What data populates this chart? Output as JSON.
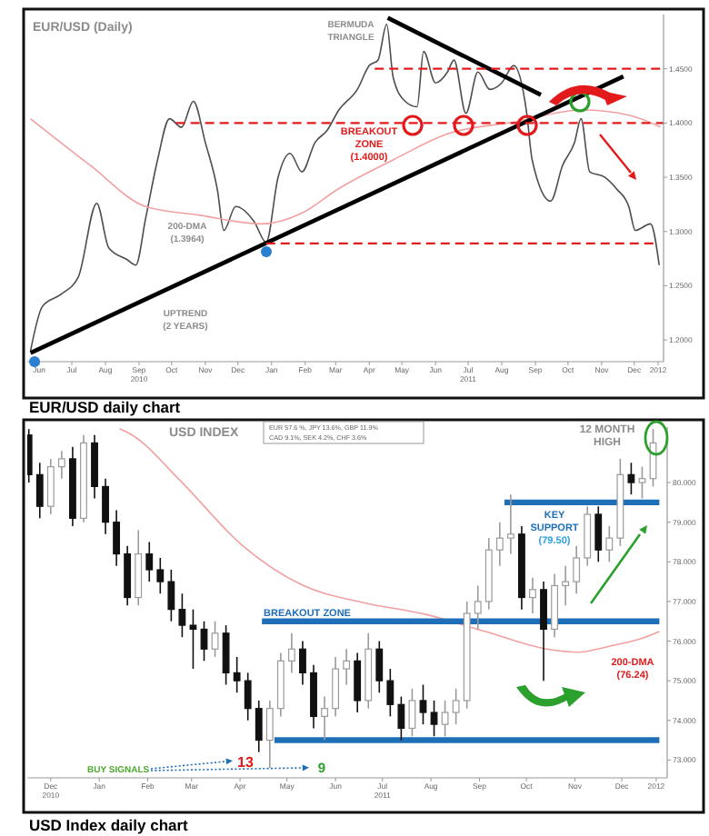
{
  "chart_data": [
    {
      "type": "line",
      "title": "EUR/USD (Daily)",
      "xlim": [
        "2010-06-04",
        "2012-01-11"
      ],
      "ylim": [
        1.18,
        1.5
      ],
      "xticks": [
        {
          "value": "2010-06-15",
          "label": "Jun"
        },
        {
          "value": "2010-07-15",
          "label": "Jul"
        },
        {
          "value": "2010-08-15",
          "label": "Aug"
        },
        {
          "value": "2010-09-15",
          "label": "Sep\n2010"
        },
        {
          "value": "2010-10-15",
          "label": "Oct"
        },
        {
          "value": "2010-11-15",
          "label": "Nov"
        },
        {
          "value": "2010-12-15",
          "label": "Dec"
        },
        {
          "value": "2011-01-15",
          "label": "Jan"
        },
        {
          "value": "2011-02-15",
          "label": "Feb"
        },
        {
          "value": "2011-03-15",
          "label": "Mar"
        },
        {
          "value": "2011-04-15",
          "label": "Apr"
        },
        {
          "value": "2011-05-15",
          "label": "May"
        },
        {
          "value": "2011-06-15",
          "label": "Jun"
        },
        {
          "value": "2011-07-15",
          "label": "Jul\n2011"
        },
        {
          "value": "2011-08-15",
          "label": "Aug"
        },
        {
          "value": "2011-09-15",
          "label": "Sep"
        },
        {
          "value": "2011-10-15",
          "label": "Oct"
        },
        {
          "value": "2011-11-15",
          "label": "Nov"
        },
        {
          "value": "2011-12-15",
          "label": "Dec"
        },
        {
          "value": "2012-01-06",
          "label": "2012"
        }
      ],
      "yticks": [
        {
          "value": 1.2,
          "label": "1.2000"
        },
        {
          "value": 1.25,
          "label": "1.2500"
        },
        {
          "value": 1.3,
          "label": "1.3000"
        },
        {
          "value": 1.35,
          "label": "1.3500"
        },
        {
          "value": 1.4,
          "label": "1.4000"
        },
        {
          "value": 1.45,
          "label": "1.4500"
        }
      ],
      "series": [
        {
          "color": "#4d4d4d",
          "x": [
            "2010-06-07",
            "2010-06-18",
            "2010-07-05",
            "2010-07-21",
            "2010-08-07",
            "2010-08-18",
            "2010-09-04",
            "2010-09-12",
            "2010-09-21",
            "2010-10-02",
            "2010-10-13",
            "2010-10-24",
            "2010-11-04",
            "2010-11-15",
            "2010-11-26",
            "2010-12-02",
            "2010-12-13",
            "2010-12-30",
            "2011-01-10",
            "2011-01-21",
            "2011-02-01",
            "2011-02-12",
            "2011-02-24",
            "2011-03-07",
            "2011-03-18",
            "2011-04-04",
            "2011-04-15",
            "2011-04-23",
            "2011-05-01",
            "2011-05-07",
            "2011-05-18",
            "2011-05-29",
            "2011-06-04",
            "2011-06-15",
            "2011-06-26",
            "2011-07-02",
            "2011-07-13",
            "2011-07-24",
            "2011-08-04",
            "2011-08-15",
            "2011-08-26",
            "2011-09-07",
            "2011-09-12",
            "2011-09-29",
            "2011-10-10",
            "2011-10-21",
            "2011-10-27",
            "2011-11-04",
            "2011-11-18",
            "2011-11-29",
            "2011-12-10",
            "2011-12-16",
            "2011-12-30",
            "2012-01-07"
          ],
          "values": [
            1.19,
            1.231,
            1.242,
            1.258,
            1.326,
            1.285,
            1.274,
            1.269,
            1.312,
            1.366,
            1.404,
            1.396,
            1.42,
            1.382,
            1.339,
            1.301,
            1.323,
            1.309,
            1.29,
            1.35,
            1.372,
            1.355,
            1.382,
            1.393,
            1.412,
            1.431,
            1.453,
            1.458,
            1.491,
            1.442,
            1.42,
            1.415,
            1.466,
            1.437,
            1.447,
            1.458,
            1.409,
            1.447,
            1.431,
            1.437,
            1.453,
            1.409,
            1.366,
            1.328,
            1.361,
            1.382,
            1.404,
            1.355,
            1.35,
            1.339,
            1.323,
            1.301,
            1.307,
            1.269
          ]
        },
        {
          "color": "#f2a0a0",
          "x": [
            "2010-06-07",
            "2010-08-01",
            "2010-09-21",
            "2010-11-10",
            "2011-01-05",
            "2011-02-12",
            "2011-03-17",
            "2011-05-07",
            "2011-06-26",
            "2011-08-27",
            "2011-10-28",
            "2011-12-11",
            "2012-01-08"
          ],
          "values": [
            1.404,
            1.361,
            1.323,
            1.315,
            1.307,
            1.317,
            1.339,
            1.366,
            1.39,
            1.401,
            1.412,
            1.407,
            1.3964
          ]
        },
        {
          "color": "#000000",
          "x": [
            "2010-06-07",
            "2011-12-05"
          ],
          "values": [
            1.188,
            1.443
          ]
        },
        {
          "color": "#000000",
          "x": [
            "2011-05-02",
            "2011-09-20"
          ],
          "values": [
            1.497,
            1.426
          ]
        },
        {
          "color": "#e31a1c",
          "line_style": "dashed",
          "x": [
            "2011-04-20",
            "2012-01-11"
          ],
          "values": [
            1.45,
            1.45
          ]
        },
        {
          "color": "#e31a1c",
          "line_style": "dashed",
          "x": [
            "2010-10-19",
            "2012-01-11"
          ],
          "values": [
            1.4,
            1.4
          ]
        },
        {
          "color": "#e31a1c",
          "line_style": "dashed",
          "x": [
            "2011-01-10",
            "2012-01-05"
          ],
          "values": [
            1.289,
            1.289
          ]
        }
      ],
      "annotations": [
        "BERMUDA\nTRIANGLE",
        "BREAKOUT\nZONE\n(1.4000)",
        "200-DMA\n(1.3964)",
        "UPTREND\n(2 YEARS)",
        "EUR/USD daily chart"
      ]
    },
    {
      "type": "candlestick",
      "title": "USD INDEX",
      "xlim": [
        "2010-11-30",
        "2012-01-13"
      ],
      "ylim": [
        72.55,
        81.4
      ],
      "xticks": [
        {
          "value": "2010-12-15",
          "label": "Dec\n2010"
        },
        {
          "value": "2011-01-15",
          "label": "Jan"
        },
        {
          "value": "2011-02-15",
          "label": "Feb"
        },
        {
          "value": "2011-03-15",
          "label": "Mar"
        },
        {
          "value": "2011-04-15",
          "label": "Apr"
        },
        {
          "value": "2011-05-15",
          "label": "May"
        },
        {
          "value": "2011-06-15",
          "label": "Jun"
        },
        {
          "value": "2011-07-15",
          "label": "Jul\n2011"
        },
        {
          "value": "2011-08-15",
          "label": "Aug"
        },
        {
          "value": "2011-09-15",
          "label": "Sep"
        },
        {
          "value": "2011-10-15",
          "label": "Oct"
        },
        {
          "value": "2011-11-15",
          "label": "Nov"
        },
        {
          "value": "2011-12-15",
          "label": "Dec"
        },
        {
          "value": "2012-01-06",
          "label": "2012"
        }
      ],
      "yticks": [
        {
          "value": 73,
          "label": "73.000"
        },
        {
          "value": 74,
          "label": "74.000"
        },
        {
          "value": 75,
          "label": "75.000"
        },
        {
          "value": 76,
          "label": "76.000"
        },
        {
          "value": 77,
          "label": "77.000"
        },
        {
          "value": 78,
          "label": "78.000"
        },
        {
          "value": 79,
          "label": "79.000"
        },
        {
          "value": 80,
          "label": "80.000"
        }
      ],
      "x": [
        "2010-12-01",
        "2010-12-08",
        "2010-12-15",
        "2010-12-22",
        "2010-12-29",
        "2011-01-05",
        "2011-01-12",
        "2011-01-19",
        "2011-01-26",
        "2011-02-02",
        "2011-02-09",
        "2011-02-16",
        "2011-02-23",
        "2011-03-02",
        "2011-03-09",
        "2011-03-16",
        "2011-03-23",
        "2011-03-30",
        "2011-04-06",
        "2011-04-13",
        "2011-04-20",
        "2011-04-27",
        "2011-05-04",
        "2011-05-11",
        "2011-05-18",
        "2011-05-25",
        "2011-06-01",
        "2011-06-08",
        "2011-06-15",
        "2011-06-22",
        "2011-06-29",
        "2011-07-06",
        "2011-07-13",
        "2011-07-20",
        "2011-07-27",
        "2011-08-03",
        "2011-08-10",
        "2011-08-17",
        "2011-08-24",
        "2011-08-31",
        "2011-09-07",
        "2011-09-14",
        "2011-09-21",
        "2011-09-28",
        "2011-10-05",
        "2011-10-12",
        "2011-10-19",
        "2011-10-26",
        "2011-11-02",
        "2011-11-09",
        "2011-11-16",
        "2011-11-23",
        "2011-11-30",
        "2011-12-07",
        "2011-12-14",
        "2011-12-21",
        "2011-12-28",
        "2012-01-04"
      ],
      "ohlc": [
        [
          81.2,
          81.35,
          80.0,
          80.2
        ],
        [
          80.2,
          80.5,
          79.1,
          79.4
        ],
        [
          79.4,
          80.6,
          79.2,
          80.4
        ],
        [
          80.4,
          80.8,
          80.1,
          80.6
        ],
        [
          80.6,
          80.9,
          78.9,
          79.1
        ],
        [
          79.1,
          81.2,
          79.0,
          81.0
        ],
        [
          81.0,
          81.2,
          79.6,
          79.9
        ],
        [
          79.9,
          80.1,
          78.7,
          79.0
        ],
        [
          79.0,
          79.3,
          77.9,
          78.2
        ],
        [
          78.2,
          78.4,
          76.9,
          77.1
        ],
        [
          77.1,
          78.8,
          76.9,
          78.2
        ],
        [
          78.2,
          78.5,
          77.5,
          77.8
        ],
        [
          77.8,
          78.1,
          77.2,
          77.5
        ],
        [
          77.5,
          77.8,
          76.5,
          76.8
        ],
        [
          76.8,
          77.2,
          76.1,
          76.4
        ],
        [
          76.4,
          76.8,
          75.3,
          76.3
        ],
        [
          76.3,
          76.5,
          75.5,
          75.8
        ],
        [
          75.8,
          76.5,
          75.6,
          76.2
        ],
        [
          76.2,
          76.4,
          74.9,
          75.2
        ],
        [
          75.2,
          75.6,
          74.7,
          75.0
        ],
        [
          75.0,
          75.2,
          74.0,
          74.3
        ],
        [
          74.3,
          74.5,
          73.2,
          73.5
        ],
        [
          73.5,
          74.5,
          72.8,
          74.3
        ],
        [
          74.3,
          75.7,
          74.1,
          75.5
        ],
        [
          75.5,
          76.2,
          75.2,
          75.8
        ],
        [
          75.8,
          76.0,
          74.9,
          75.2
        ],
        [
          75.2,
          75.4,
          73.8,
          74.1
        ],
        [
          74.1,
          74.6,
          73.5,
          74.3
        ],
        [
          74.3,
          75.6,
          74.1,
          75.3
        ],
        [
          75.3,
          75.8,
          74.9,
          75.5
        ],
        [
          75.5,
          75.7,
          74.2,
          74.5
        ],
        [
          74.5,
          76.2,
          74.3,
          75.8
        ],
        [
          75.8,
          76.0,
          74.7,
          75.0
        ],
        [
          75.0,
          75.3,
          74.1,
          74.4
        ],
        [
          74.4,
          74.6,
          73.5,
          73.8
        ],
        [
          73.8,
          74.8,
          73.6,
          74.5
        ],
        [
          74.5,
          74.9,
          73.9,
          74.2
        ],
        [
          74.2,
          74.5,
          73.6,
          73.9
        ],
        [
          73.9,
          74.5,
          73.6,
          74.2
        ],
        [
          74.2,
          74.8,
          73.9,
          74.5
        ],
        [
          74.5,
          77.0,
          74.3,
          76.7
        ],
        [
          76.7,
          77.4,
          76.3,
          77.0
        ],
        [
          77.0,
          78.6,
          76.8,
          78.3
        ],
        [
          78.3,
          79.0,
          77.9,
          78.6
        ],
        [
          78.6,
          79.7,
          78.2,
          78.7
        ],
        [
          78.7,
          78.9,
          76.8,
          77.1
        ],
        [
          77.1,
          77.6,
          76.7,
          77.3
        ],
        [
          77.3,
          77.5,
          75.0,
          76.3
        ],
        [
          76.3,
          77.7,
          76.1,
          77.4
        ],
        [
          77.4,
          77.9,
          76.9,
          77.5
        ],
        [
          77.5,
          78.4,
          77.2,
          78.1
        ],
        [
          78.1,
          79.4,
          77.9,
          79.2
        ],
        [
          79.2,
          79.4,
          78.0,
          78.3
        ],
        [
          78.3,
          78.9,
          78.0,
          78.6
        ],
        [
          78.6,
          80.6,
          78.4,
          80.2
        ],
        [
          80.2,
          80.5,
          79.7,
          80.0
        ],
        [
          80.0,
          80.4,
          79.6,
          80.1
        ],
        [
          80.1,
          81.35,
          79.9,
          81.0
        ]
      ],
      "series": [
        {
          "type": "line",
          "color": "#f2a0a0",
          "x": [
            "2011-01-28",
            "2011-02-05",
            "2011-03-08",
            "2011-04-16",
            "2011-05-25",
            "2011-07-03",
            "2011-08-11",
            "2011-09-19",
            "2011-10-28",
            "2011-11-17",
            "2011-12-07",
            "2011-12-30",
            "2012-01-08"
          ],
          "values": [
            81.36,
            81.2,
            80.04,
            78.43,
            77.41,
            76.97,
            76.68,
            76.24,
            75.8,
            75.72,
            75.87,
            76.1,
            76.24
          ]
        },
        {
          "type": "line",
          "color": "#1f6fb8",
          "x": [
            "2011-10-01",
            "2012-01-08"
          ],
          "values": [
            79.5,
            79.5
          ]
        },
        {
          "type": "line",
          "color": "#1f6fb8",
          "x": [
            "2011-04-29",
            "2012-01-08"
          ],
          "values": [
            76.5,
            76.5
          ]
        },
        {
          "type": "line",
          "color": "#1f6fb8",
          "x": [
            "2011-05-07",
            "2012-01-08"
          ],
          "values": [
            73.5,
            73.5
          ]
        }
      ],
      "annotations": [
        "EUR 57.6 %, JPY 13.6%, GBP 11.9%",
        "CAD 9.1%, SEK 4.2%, CHF 3.6%",
        "12 MONTH\nHIGH",
        "KEY\nSUPPORT\n(79.50)",
        "BREAKOUT ZONE",
        "200-DMA\n(76.24)",
        "13",
        "9",
        "BUY SIGNALS",
        "USD Index daily chart"
      ]
    }
  ]
}
